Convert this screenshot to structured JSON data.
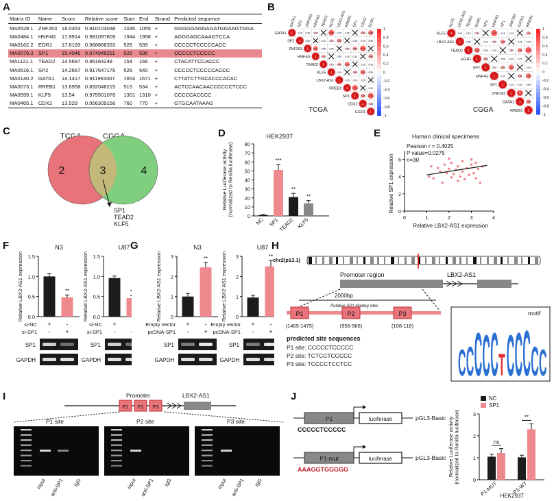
{
  "panels": {
    "A": "A",
    "B": "B",
    "C": "C",
    "D": "D",
    "E": "E",
    "F": "F",
    "G": "G",
    "H": "H",
    "I": "I",
    "J": "J"
  },
  "table": {
    "headers": [
      "Matrix ID",
      "Name",
      "Score",
      "Relative score",
      "Start",
      "End",
      "Strand",
      "Predicted sequence"
    ],
    "rows": [
      [
        "MA0528.1",
        "ZNF263",
        "18.0353",
        "0.910103038",
        "1035",
        "1055",
        "+",
        "GGGGGAGGAGATGGAAGTGGA"
      ],
      [
        "MA0484.1",
        "HNF4G",
        "17.9914",
        "0.981097809",
        "1944",
        "1958",
        "+",
        "AGGGAGCAAAGTCCA"
      ],
      [
        "MA0162.2",
        "EGR1",
        "17.6193",
        "0.968868333",
        "526",
        "539",
        "+",
        "CCCCCTCCCCCACC"
      ],
      [
        "MA0079.3",
        "SP1",
        "15.4046",
        "0.974948211",
        "526",
        "536",
        "+",
        "CCCCCTCCCCC"
      ],
      [
        "MA1121.1",
        "TEAD2",
        "14.5697",
        "0.96164248",
        "154",
        "166",
        "+",
        "CTACATTCCACCC"
      ],
      [
        "MA0516.1",
        "SP2",
        "14.2667",
        "0.917647176",
        "526",
        "540",
        "+",
        "CCCCCTCCCCCACCC"
      ],
      [
        "MA0140.2",
        "GATA1",
        "14.1417",
        "0.911963307",
        "1654",
        "1671",
        "+",
        "CTTATCTTGCACCCACAC"
      ],
      [
        "MA0073.1",
        "RREB1",
        "13.6958",
        "0.832048215",
        "515",
        "534",
        "+",
        "ACTCCAACAACCCCCCTCCC"
      ],
      [
        "MA0599.1",
        "KLF5",
        "13.54",
        "0.975501078",
        "1301",
        "1310",
        "+",
        "CCCCCACCCC"
      ],
      [
        "MA0465.1",
        "CDX2",
        "13.529",
        "0.956309158",
        "760",
        "770",
        "+",
        "GTGCAATAAAG"
      ]
    ],
    "highlight_row": 3,
    "highlight_color": "#e88a8f"
  },
  "corr_tcga": {
    "labels": [
      "GATA1",
      "SP2",
      "ZNF263",
      "HNF4G",
      "TEAD2",
      "KLF5",
      "LBX2-AS1",
      "RREB1",
      "SP1",
      "CDX2",
      "EGR1"
    ],
    "caption": "TCGA",
    "scale_ticks": [
      "1",
      "0.8",
      "0.6",
      "0.4",
      "0.2",
      "0",
      "-0.2",
      "-0.4",
      "-0.6",
      "-0.8",
      "-1"
    ]
  },
  "corr_cgga": {
    "labels": [
      "KLF5",
      "LBX2-AS1",
      "TEAD2",
      "EGR1",
      "SP2",
      "HNF4G",
      "SP1",
      "ZNF263",
      "GATA1",
      "RREB1"
    ],
    "caption": "CGGA",
    "scale_ticks": [
      "1",
      "0.8",
      "0.6",
      "0.4",
      "0.2",
      "0",
      "-0.2",
      "-0.4",
      "-0.6",
      "-0.8",
      "-1"
    ]
  },
  "venn": {
    "left_label": "TCGA",
    "right_label": "CGGA",
    "left_only": "2",
    "overlap": "3",
    "right_only": "4",
    "overlap_genes": [
      "SP1",
      "TEAD2",
      "KLF5"
    ],
    "left_color": "#e8737a",
    "right_color": "#7fcf7f",
    "overlap_color": "#c2b87a"
  },
  "chart_d": {
    "type": "bar",
    "title": "HEK293T",
    "ylabel": "Relative Luciferase activity\n(normalized to Renilla luciferase)",
    "categories": [
      "NC",
      "SP1",
      "TEAD2",
      "KLF5"
    ],
    "values": [
      1,
      51,
      21,
      14
    ],
    "errors": [
      0.5,
      6,
      4,
      3
    ],
    "sig": [
      "",
      "***",
      "**",
      "**"
    ],
    "colors": [
      "#1c1c1c",
      "#ee8a8e",
      "#1c1c1c",
      "#888888"
    ],
    "yticks": [
      "0",
      "10",
      "20",
      "30",
      "40",
      "50",
      "60",
      "70",
      "80"
    ],
    "ylim": [
      0,
      80
    ]
  },
  "chart_e": {
    "type": "scatter",
    "title": "Human clinical specimens",
    "stats": [
      "Pearson r = 0.4025",
      "P value=0.0275",
      "n=30"
    ],
    "xlabel": "Relative LBX2-AS1 expression",
    "ylabel": "Relative SP1 expression",
    "xticks": [
      "0",
      "1",
      "2",
      "3",
      "4"
    ],
    "yticks": [
      "0",
      "2",
      "4",
      "6"
    ],
    "xlim": [
      0,
      4
    ],
    "ylim": [
      0,
      7
    ],
    "points": [
      [
        1.1,
        4.0
      ],
      [
        1.3,
        3.8
      ],
      [
        1.5,
        5.0
      ],
      [
        1.6,
        4.6
      ],
      [
        1.7,
        3.3
      ],
      [
        1.8,
        5.4
      ],
      [
        1.9,
        4.4
      ],
      [
        2.0,
        4.9
      ],
      [
        2.1,
        5.6
      ],
      [
        2.1,
        3.9
      ],
      [
        2.2,
        4.3
      ],
      [
        2.3,
        4.8
      ],
      [
        2.4,
        3.5
      ],
      [
        2.4,
        5.2
      ],
      [
        2.5,
        4.0
      ],
      [
        2.6,
        5.8
      ],
      [
        2.6,
        4.6
      ],
      [
        2.7,
        3.7
      ],
      [
        2.8,
        5.0
      ],
      [
        2.9,
        4.2
      ],
      [
        3.0,
        5.4
      ],
      [
        3.0,
        6.0
      ],
      [
        3.1,
        4.4
      ],
      [
        3.2,
        3.8
      ],
      [
        3.2,
        5.6
      ],
      [
        3.3,
        4.9
      ],
      [
        3.4,
        3.3
      ],
      [
        3.5,
        5.2
      ],
      [
        1.2,
        5.2
      ],
      [
        2.0,
        6.1
      ]
    ],
    "fit": [
      [
        1.0,
        4.2
      ],
      [
        3.7,
        5.3
      ]
    ],
    "point_color": "#ee8a8e"
  },
  "chart_f": {
    "ylabel": "Relative LBX2-AS1 expression",
    "yticks": [
      "0.0",
      "0.5",
      "1.0",
      "1.5"
    ],
    "ylim": [
      0,
      1.5
    ],
    "plots": [
      {
        "title": "N3",
        "values": [
          1.0,
          0.48
        ],
        "errors": [
          0.07,
          0.06
        ],
        "sig": [
          "",
          "**"
        ]
      },
      {
        "title": "U87",
        "values": [
          0.96,
          0.46
        ],
        "errors": [
          0.05,
          0.06
        ],
        "sig": [
          "",
          "**"
        ]
      }
    ],
    "row1_label": "si-NC",
    "row2_label": "si-SP1",
    "row1": [
      "+",
      "-"
    ],
    "row2": [
      "-",
      "+"
    ],
    "blots": [
      "SP1",
      "GAPDH"
    ]
  },
  "chart_g": {
    "ylabel": "Relative LBX2-AS1 expression",
    "yticks": [
      "0",
      "1",
      "2",
      "3"
    ],
    "ylim": [
      0,
      3
    ],
    "plots": [
      {
        "title": "N3",
        "values": [
          1.0,
          2.45
        ],
        "errors": [
          0.15,
          0.25
        ],
        "sig": [
          "",
          "**"
        ]
      },
      {
        "title": "U87",
        "values": [
          0.95,
          2.5
        ],
        "errors": [
          0.12,
          0.3
        ],
        "sig": [
          "",
          "**"
        ]
      }
    ],
    "row1_label": "Empty vector",
    "row2_label": "pcDNA-SP1",
    "row1": [
      "+",
      "-"
    ],
    "row2": [
      "-",
      "+"
    ],
    "blots": [
      "SP1",
      "GAPDH"
    ]
  },
  "panel_h": {
    "chrom": "chr2(p13.1)",
    "promoter": "Promoter region",
    "gene": "LBX2-AS1",
    "length": "2000bp",
    "putative": "Putative SP1 binding sites",
    "sites": [
      {
        "name": "P1",
        "range": "(1465-1475)"
      },
      {
        "name": "P2",
        "range": "(956-966)"
      },
      {
        "name": "P3",
        "range": "(108-118)"
      }
    ],
    "heading": "predicted site sequences",
    "site_seqs": [
      "P1 site: CCCCCTCCCCC",
      "P2 site: TCTCCTCCCCC",
      "P3 site: TCCCCTCCTCC"
    ],
    "motif_label": "motif",
    "motif_letters": "CCCCCTCCCCC"
  },
  "panel_i": {
    "promoter": "Promoter",
    "gene": "LBX2-AS1",
    "sites": [
      "P1",
      "P2",
      "P3"
    ],
    "gels": [
      {
        "title": "P1 site",
        "lanes": [
          "input",
          "anti-SP1",
          "IgG"
        ]
      },
      {
        "title": "P2 site",
        "lanes": [
          "input",
          "anti-SP1",
          "IgG"
        ]
      },
      {
        "title": "P3 site",
        "lanes": [
          "input",
          "anti-SP1",
          "IgG"
        ]
      }
    ]
  },
  "panel_j": {
    "constructs": [
      {
        "box": "P1",
        "seq": "CCCCCTCCCCC",
        "reporter": "luciferase",
        "vector": "pGL3-Basic"
      },
      {
        "box": "P1-mut",
        "seq": "AAAGGTGGGGG",
        "reporter": "luciferase",
        "vector": "pGL3-Basic"
      }
    ],
    "chart": {
      "type": "bar",
      "legend": [
        "NC",
        "SP1"
      ],
      "categories": [
        "P1-MUT",
        "P1-WT"
      ],
      "series": [
        {
          "name": "NC",
          "values": [
            1.05,
            1.02
          ],
          "errors": [
            0.12,
            0.1
          ],
          "color": "#1c1c1c"
        },
        {
          "name": "SP1",
          "values": [
            1.22,
            2.3
          ],
          "errors": [
            0.2,
            0.25
          ],
          "color": "#ee8a8e"
        }
      ],
      "sig": [
        "ns",
        "**"
      ],
      "ylabel": "Relative Luciferase activity\n(normalized to Renilla luciferase)",
      "xlabel": "HEK293T",
      "yticks": [
        "0",
        "1",
        "2",
        "3"
      ],
      "ylim": [
        0,
        3
      ]
    }
  }
}
